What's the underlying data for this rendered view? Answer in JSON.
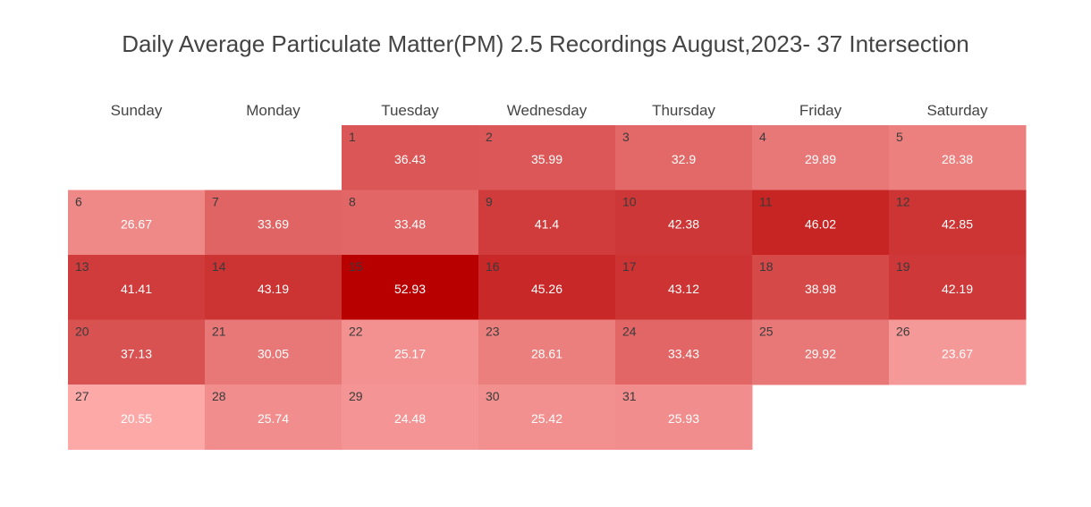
{
  "chart_data": {
    "type": "heatmap",
    "title": "Daily Average Particulate Matter(PM) 2.5 Recordings August,2023- 37 Intersection",
    "weekdays": [
      "Sunday",
      "Monday",
      "Tuesday",
      "Wednesday",
      "Thursday",
      "Friday",
      "Saturday"
    ],
    "first_weekday_index": 2,
    "days": [
      {
        "date": "1",
        "value": 36.43
      },
      {
        "date": "2",
        "value": 35.99
      },
      {
        "date": "3",
        "value": 32.9
      },
      {
        "date": "4",
        "value": 29.89
      },
      {
        "date": "5",
        "value": 28.38
      },
      {
        "date": "6",
        "value": 26.67
      },
      {
        "date": "7",
        "value": 33.69
      },
      {
        "date": "8",
        "value": 33.48
      },
      {
        "date": "9",
        "value": 41.4
      },
      {
        "date": "10",
        "value": 42.38
      },
      {
        "date": "11",
        "value": 46.02
      },
      {
        "date": "12",
        "value": 42.85
      },
      {
        "date": "13",
        "value": 41.41
      },
      {
        "date": "14",
        "value": 43.19
      },
      {
        "date": "15",
        "value": 52.93
      },
      {
        "date": "16",
        "value": 45.26
      },
      {
        "date": "17",
        "value": 43.12
      },
      {
        "date": "18",
        "value": 38.98
      },
      {
        "date": "19",
        "value": 42.19
      },
      {
        "date": "20",
        "value": 37.13
      },
      {
        "date": "21",
        "value": 30.05
      },
      {
        "date": "22",
        "value": 25.17
      },
      {
        "date": "23",
        "value": 28.61
      },
      {
        "date": "24",
        "value": 33.43
      },
      {
        "date": "25",
        "value": 29.92
      },
      {
        "date": "26",
        "value": 23.67
      },
      {
        "date": "27",
        "value": 20.55
      },
      {
        "date": "28",
        "value": 25.74
      },
      {
        "date": "29",
        "value": 24.48
      },
      {
        "date": "30",
        "value": 25.42
      },
      {
        "date": "31",
        "value": 25.93
      }
    ],
    "color_scale": {
      "low": "#fca9a8",
      "high": "#b80000"
    }
  }
}
